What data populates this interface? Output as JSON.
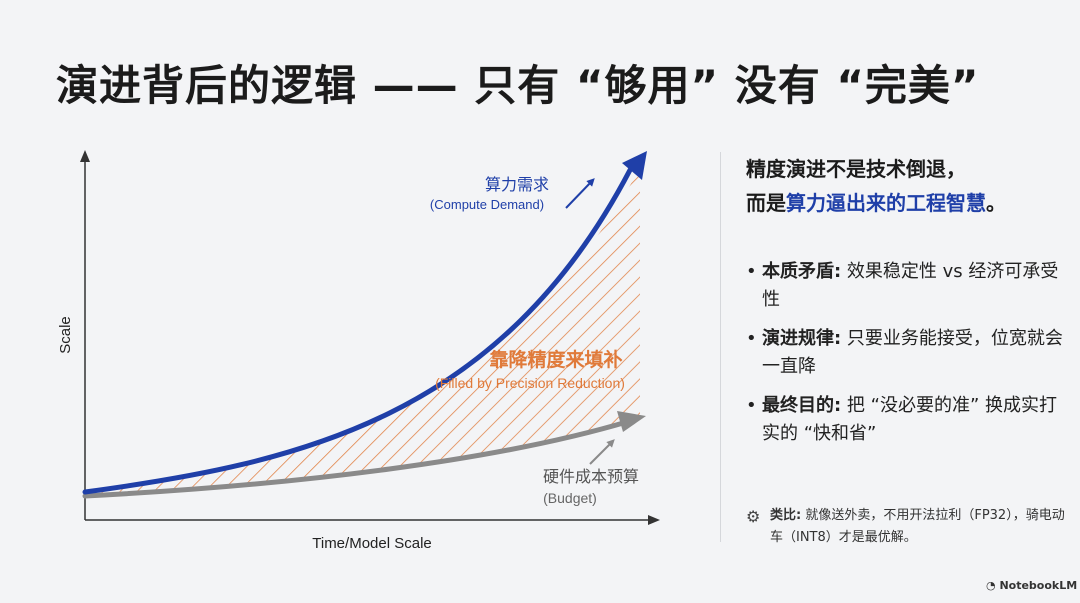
{
  "title": "演进背后的逻辑 —— 只有 “够用” 没有 “完美”",
  "diagram": {
    "x_label": "Time/Model Scale",
    "y_label": "Scale",
    "demand_label": "算力需求",
    "demand_label_en": "(Compute Demand)",
    "gap_label": "靠降精度来填补",
    "gap_label_en": "(Filled by Precision Reduction)",
    "budget_label": "硬件成本预算",
    "budget_label_en": "(Budget)",
    "colors": {
      "demand": "#1f3fa8",
      "budget": "#8a8a8a",
      "gap": "#e07a3a"
    }
  },
  "panel": {
    "headline_line1": "精度演进不是技术倒退，",
    "headline_prefix": "而是",
    "headline_accent": "算力逼出来的工程智慧",
    "headline_suffix": "。",
    "points": [
      {
        "label": "本质矛盾:",
        "text": " 效果稳定性 vs 经济可承受性"
      },
      {
        "label": "演进规律:",
        "text": " 只要业务能接受，位宽就会一直降"
      },
      {
        "label": "最终目的:",
        "text": " 把 “没必要的准” 换成实打实的 “快和省”"
      }
    ],
    "analogy_label": "类比:",
    "analogy_text": " 就像送外卖，不用开法拉利（FP32），骑电动车（INT8）才是最优解。"
  },
  "brand": "NotebookLM"
}
